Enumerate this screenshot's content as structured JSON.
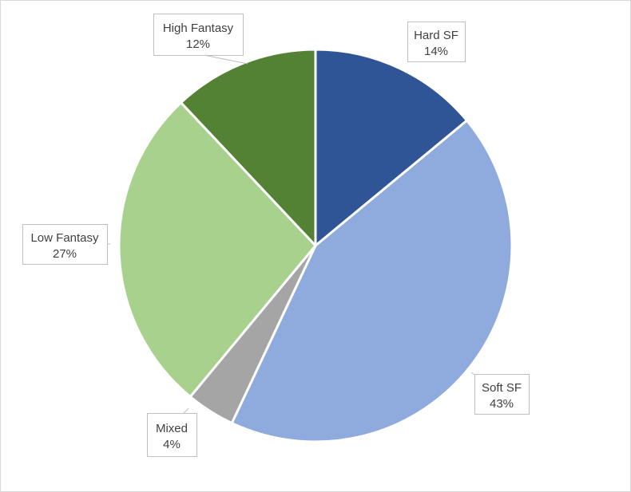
{
  "chart_data": {
    "type": "pie",
    "title": "",
    "start_angle_deg": 0,
    "direction": "clockwise",
    "slices": [
      {
        "label": "Hard SF",
        "value": 14,
        "display": "14%",
        "color": "#2f5597"
      },
      {
        "label": "Soft SF",
        "value": 43,
        "display": "43%",
        "color": "#8faadc"
      },
      {
        "label": "Mixed",
        "value": 4,
        "display": "4%",
        "color": "#a5a5a5"
      },
      {
        "label": "Low Fantasy",
        "value": 27,
        "display": "27%",
        "color": "#a9d18e"
      },
      {
        "label": "High Fantasy",
        "value": 12,
        "display": "12%",
        "color": "#548235"
      }
    ],
    "legend": "none",
    "data_labels": "callouts"
  }
}
